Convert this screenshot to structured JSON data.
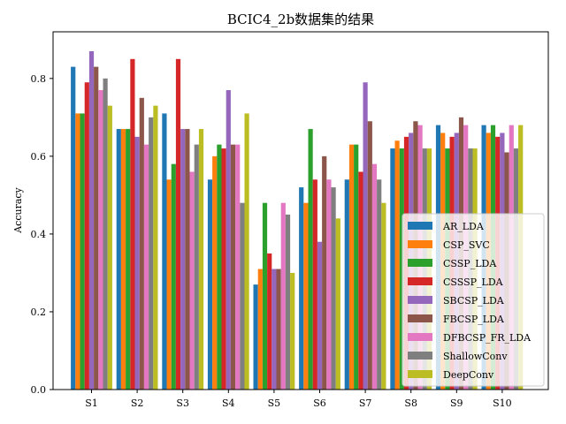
{
  "chart_data": {
    "type": "bar",
    "title": "BCIC4_2b数据集的结果",
    "xlabel": "",
    "ylabel": "Accuracy",
    "ylim": [
      0,
      0.92
    ],
    "yticks": [
      "0.0",
      "0.2",
      "0.4",
      "0.6",
      "0.8"
    ],
    "grid": false,
    "legend_position": "lower-right",
    "categories": [
      "S1",
      "S2",
      "S3",
      "S4",
      "S5",
      "S6",
      "S7",
      "S8",
      "S9",
      "S10"
    ],
    "series": [
      {
        "name": "AR_LDA",
        "color": "#1f77b4",
        "values": [
          0.83,
          0.67,
          0.71,
          0.54,
          0.27,
          0.52,
          0.54,
          0.62,
          0.68,
          0.68
        ]
      },
      {
        "name": "CSP_SVC",
        "color": "#ff7f0e",
        "values": [
          0.71,
          0.67,
          0.54,
          0.6,
          0.31,
          0.48,
          0.63,
          0.64,
          0.66,
          0.66
        ]
      },
      {
        "name": "CSSP_LDA",
        "color": "#2ca02c",
        "values": [
          0.71,
          0.67,
          0.58,
          0.63,
          0.48,
          0.67,
          0.63,
          0.62,
          0.62,
          0.68
        ]
      },
      {
        "name": "CSSSP_LDA",
        "color": "#d62728",
        "values": [
          0.79,
          0.85,
          0.85,
          0.62,
          0.35,
          0.54,
          0.56,
          0.65,
          0.65,
          0.65
        ]
      },
      {
        "name": "SBCSP_LDA",
        "color": "#9467bd",
        "values": [
          0.87,
          0.65,
          0.67,
          0.77,
          0.31,
          0.38,
          0.79,
          0.66,
          0.66,
          0.66
        ]
      },
      {
        "name": "FBCSP_LDA",
        "color": "#8c564b",
        "values": [
          0.83,
          0.75,
          0.67,
          0.63,
          0.31,
          0.6,
          0.69,
          0.69,
          0.7,
          0.61
        ]
      },
      {
        "name": "DFBCSP_FR_LDA",
        "color": "#e377c2",
        "values": [
          0.77,
          0.63,
          0.56,
          0.63,
          0.48,
          0.54,
          0.58,
          0.68,
          0.68,
          0.68
        ]
      },
      {
        "name": "ShallowConv",
        "color": "#7f7f7f",
        "values": [
          0.8,
          0.7,
          0.63,
          0.48,
          0.45,
          0.52,
          0.54,
          0.62,
          0.62,
          0.62
        ]
      },
      {
        "name": "DeepConv",
        "color": "#bcbd22",
        "values": [
          0.73,
          0.73,
          0.67,
          0.71,
          0.3,
          0.44,
          0.48,
          0.62,
          0.62,
          0.68
        ]
      }
    ]
  }
}
